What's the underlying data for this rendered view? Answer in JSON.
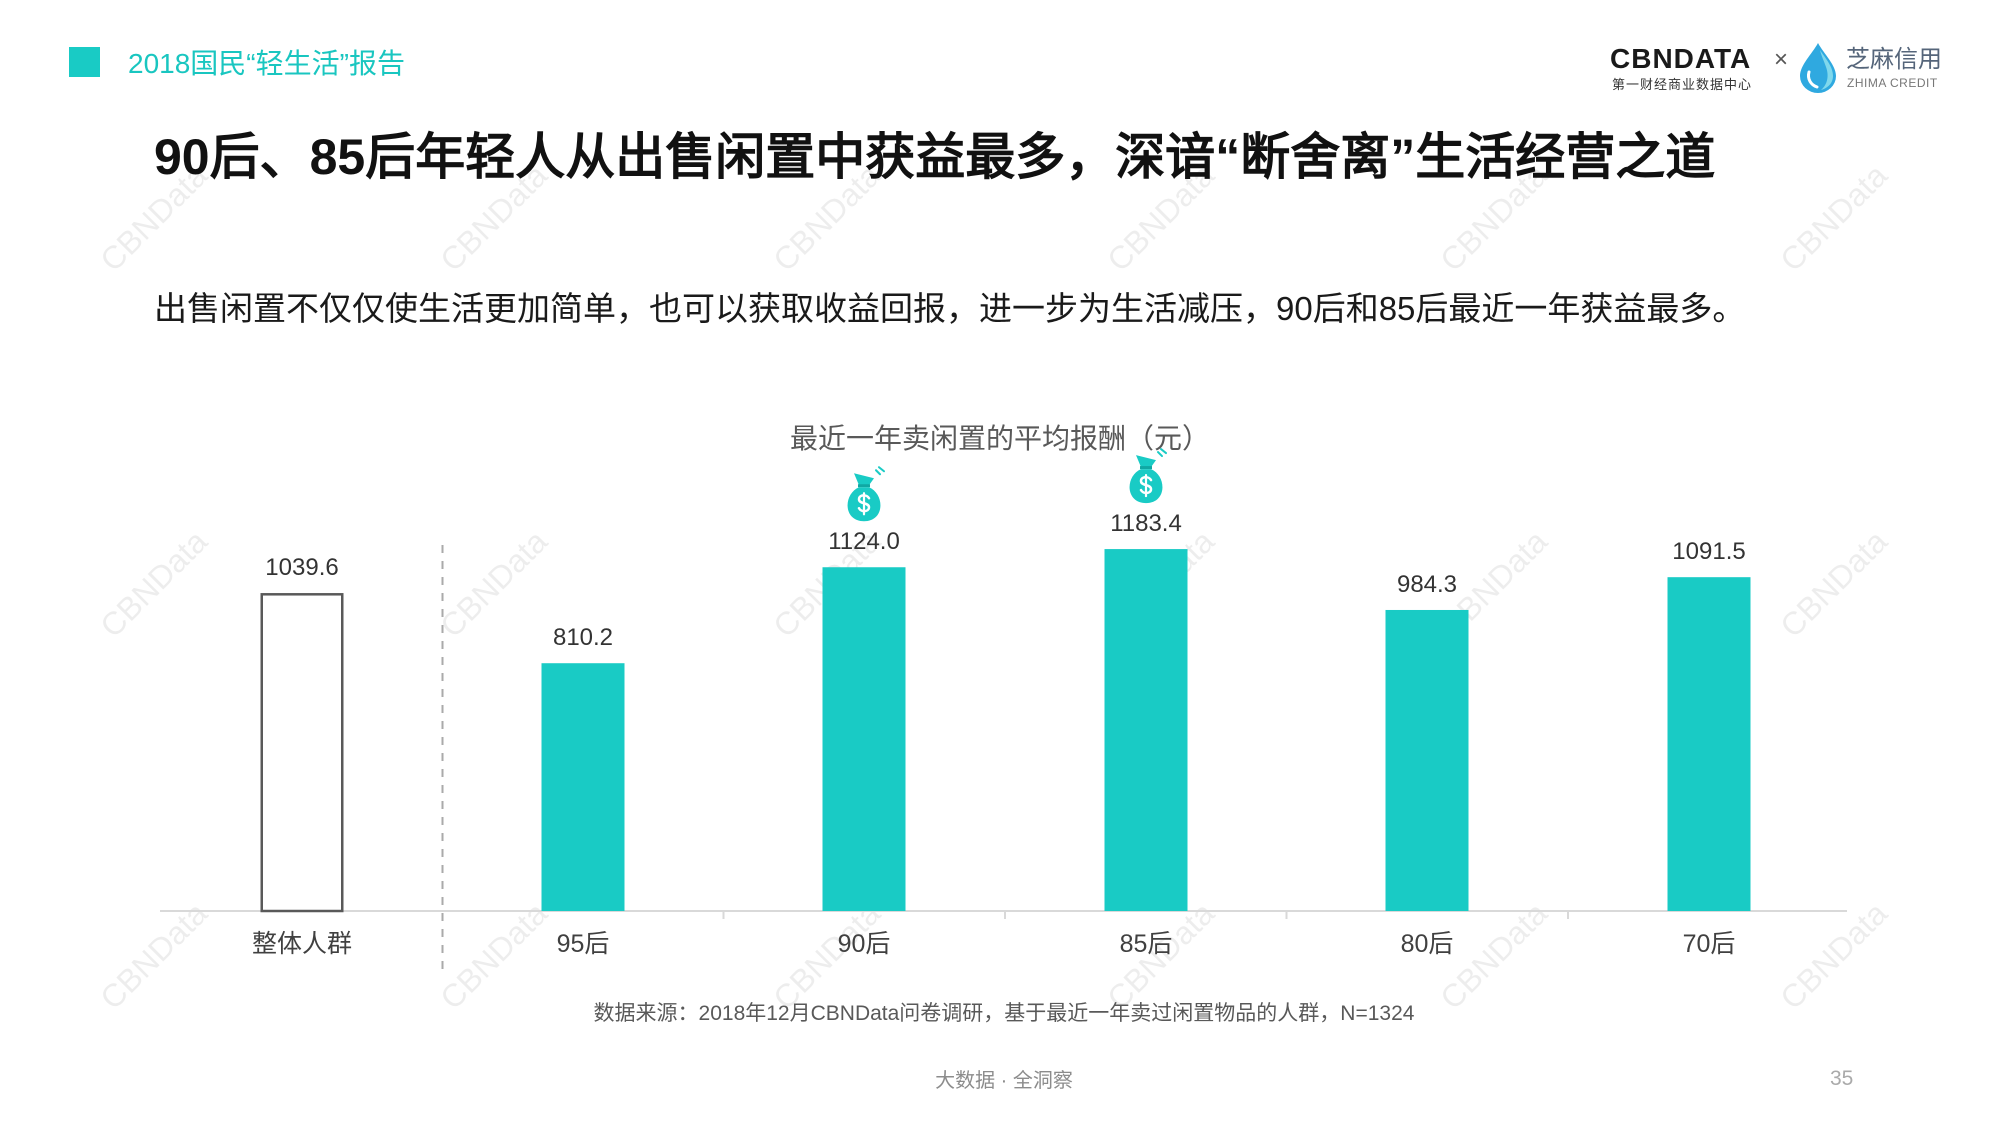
{
  "header": {
    "report_title": "2018国民“轻生活”报告"
  },
  "logo": {
    "brand": "CBNDATA",
    "brand_subtitle": "第一财经商业数据中心",
    "separator": "×",
    "partner_icon": "water-drop-icon",
    "partner_name": "芝麻信用",
    "partner_english": "ZHIMA CREDIT"
  },
  "slide": {
    "title": "90后、85后年轻人从出售闲置中获益最多，深谙“断舍离”生活经营之道",
    "subtitle": "出售闲置不仅仅使生活更加简单，也可以获取收益回报，进一步为生活减压，90后和85后最近一年获益最多。"
  },
  "chart_data": {
    "type": "bar",
    "title": "最近一年卖闲置的平均报酬（元）",
    "xlabel": "",
    "ylabel": "",
    "categories": [
      "整体人群",
      "95后",
      "90后",
      "85后",
      "80后",
      "70后"
    ],
    "values": [
      1039.6,
      810.2,
      1124.0,
      1183.4,
      984.3,
      1091.5
    ],
    "value_labels": [
      "1039.6",
      "810.2",
      "1124.0",
      "1183.4",
      "984.3",
      "1091.5"
    ],
    "ylim": [
      0,
      1200
    ],
    "grid": false,
    "legend": "none",
    "reference_category": "整体人群",
    "highlight_categories": [
      "90后",
      "85后"
    ],
    "highlight_icon": "money-bag-icon",
    "bar_color": "#19cbc5",
    "reference_bar_fill": "#ffffff",
    "reference_bar_outline": "#595959"
  },
  "source": "数据来源：2018年12月CBNData问卷调研，基于最近一年卖过闲置物品的人群，N=1324",
  "footer": {
    "tagline": "大数据 · 全洞察",
    "page_number": "35"
  },
  "watermark": {
    "text": "CBNData"
  },
  "colors": {
    "accent": "#19cbc5",
    "title": "#111111",
    "axis": "#d9d9d9",
    "separator": "#aaaaaa",
    "drop_blue": "#2fa9e0"
  }
}
